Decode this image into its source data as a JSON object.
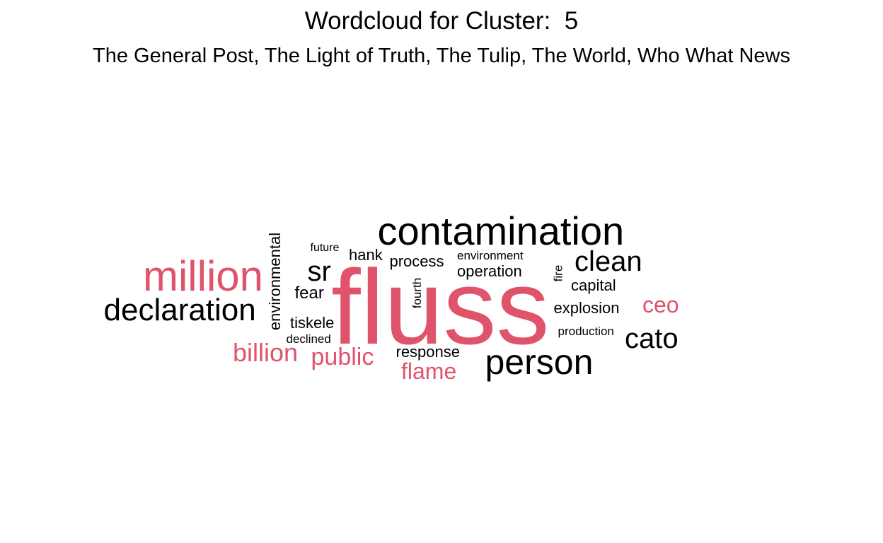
{
  "title": "Wordcloud for Cluster:  5",
  "subtitle": "The General Post, The Light of Truth, The Tulip, The World, Who What News",
  "colors": {
    "highlight": "#df536b",
    "default": "#000000"
  },
  "words": [
    {
      "text": "fluss",
      "color": "highlight"
    },
    {
      "text": "contamination",
      "color": "default"
    },
    {
      "text": "million",
      "color": "highlight"
    },
    {
      "text": "declaration",
      "color": "default"
    },
    {
      "text": "person",
      "color": "default"
    },
    {
      "text": "clean",
      "color": "default"
    },
    {
      "text": "cato",
      "color": "default"
    },
    {
      "text": "sr",
      "color": "default"
    },
    {
      "text": "billion",
      "color": "highlight"
    },
    {
      "text": "public",
      "color": "highlight"
    },
    {
      "text": "ceo",
      "color": "highlight"
    },
    {
      "text": "flame",
      "color": "highlight"
    },
    {
      "text": "environmental",
      "color": "default"
    },
    {
      "text": "future",
      "color": "default"
    },
    {
      "text": "hank",
      "color": "default"
    },
    {
      "text": "process",
      "color": "default"
    },
    {
      "text": "environment",
      "color": "default"
    },
    {
      "text": "operation",
      "color": "default"
    },
    {
      "text": "fear",
      "color": "default"
    },
    {
      "text": "fourth",
      "color": "default"
    },
    {
      "text": "fire",
      "color": "default"
    },
    {
      "text": "capital",
      "color": "default"
    },
    {
      "text": "explosion",
      "color": "default"
    },
    {
      "text": "tiskele",
      "color": "default"
    },
    {
      "text": "declined",
      "color": "default"
    },
    {
      "text": "production",
      "color": "default"
    },
    {
      "text": "response",
      "color": "default"
    }
  ]
}
